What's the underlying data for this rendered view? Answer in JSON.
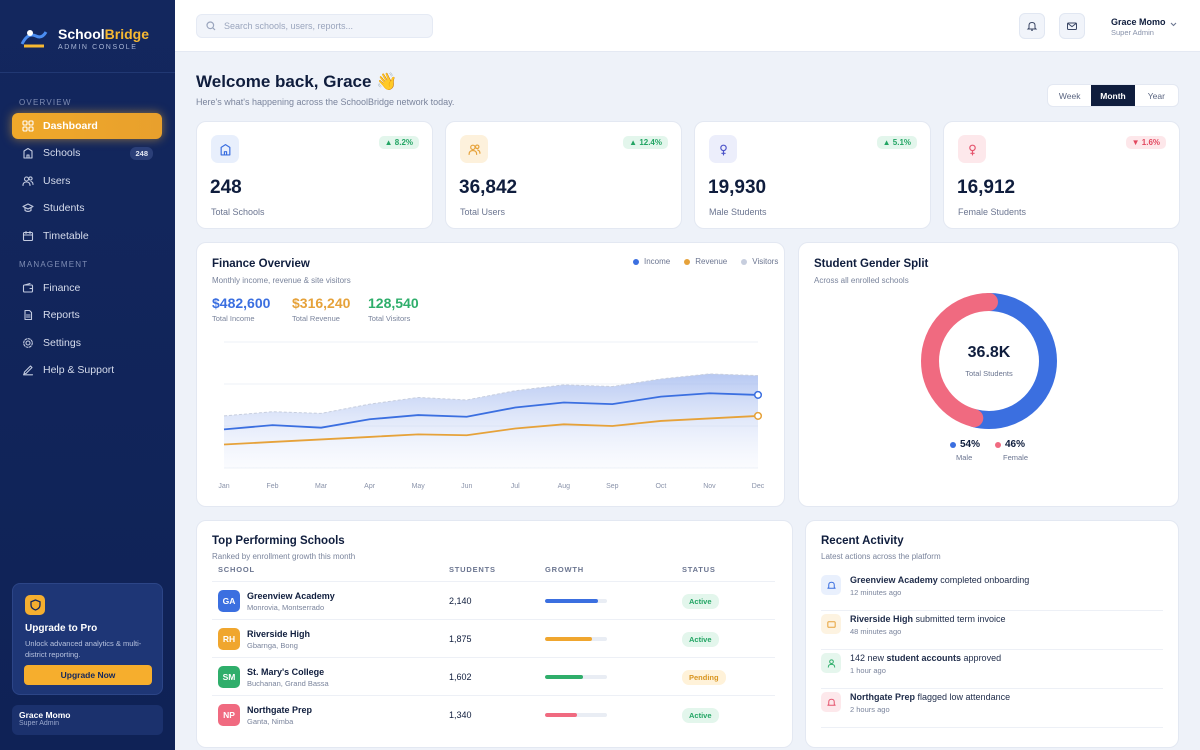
{
  "brand": {
    "name_a": "School",
    "name_b": "Bridge",
    "subtitle": "ADMIN CONSOLE"
  },
  "sidebar": {
    "overview_label": "OVERVIEW",
    "management_label": "MANAGEMENT",
    "items": [
      {
        "label": "Dashboard",
        "icon": "grid-icon"
      },
      {
        "label": "Schools",
        "icon": "building-icon",
        "badge": "248"
      },
      {
        "label": "Users",
        "icon": "users-icon"
      },
      {
        "label": "Students",
        "icon": "graduation-cap-icon"
      },
      {
        "label": "Timetable",
        "icon": "calendar-icon"
      },
      {
        "label": "Finance",
        "icon": "wallet-icon"
      },
      {
        "label": "Reports",
        "icon": "document-icon"
      },
      {
        "label": "Settings",
        "icon": "gear-icon"
      },
      {
        "label": "Help & Support",
        "icon": "edit-icon"
      }
    ],
    "upgrade": {
      "title": "Upgrade to Pro",
      "text": "Unlock advanced analytics & multi-district reporting.",
      "button": "Upgrade Now"
    },
    "user": {
      "name": "Grace Momo",
      "role": "Super Admin"
    }
  },
  "topbar": {
    "search_placeholder": "Search schools, users, reports...",
    "user_name": "Grace Momo",
    "user_role": "Super Admin"
  },
  "header": {
    "title": "Welcome back, Grace 👋",
    "subtitle": "Here's what's happening across the SchoolBridge network today.",
    "ranges": [
      "Week",
      "Month",
      "Year"
    ],
    "selected_range": "Month"
  },
  "stats": [
    {
      "value": "248",
      "label": "Total Schools",
      "trend": "▲ 8.2%",
      "dir": "up",
      "icon": "building-icon",
      "color": "#3b6fe0"
    },
    {
      "value": "36,842",
      "label": "Total Users",
      "trend": "▲ 12.4%",
      "dir": "up",
      "icon": "users-icon",
      "color": "#e6a23a"
    },
    {
      "value": "19,930",
      "label": "Male Students",
      "trend": "▲ 5.1%",
      "dir": "up",
      "icon": "male-icon",
      "color": "#4f56c9"
    },
    {
      "value": "16,912",
      "label": "Female Students",
      "trend": "▼ 1.6%",
      "dir": "down",
      "icon": "female-icon",
      "color": "#e5566f"
    }
  ],
  "finance": {
    "title": "Finance Overview",
    "subtitle": "Monthly income, revenue & site visitors",
    "kpis": [
      {
        "value": "$482,600",
        "label": "Total Income",
        "color": "#3b6fe0"
      },
      {
        "value": "$316,240",
        "label": "Total Revenue",
        "color": "#e6a23a"
      },
      {
        "value": "128,540",
        "label": "Total Visitors",
        "color": "#2fae6b"
      }
    ],
    "chart_data": {
      "type": "line",
      "categories": [
        "Jan",
        "Feb",
        "Mar",
        "Apr",
        "May",
        "Jun",
        "Jul",
        "Aug",
        "Sep",
        "Oct",
        "Nov",
        "Dec"
      ],
      "series": [
        {
          "name": "Income",
          "color": "#3b6fe0",
          "values": [
            46,
            51,
            48,
            58,
            63,
            61,
            72,
            78,
            76,
            85,
            89,
            87
          ]
        },
        {
          "name": "Revenue",
          "color": "#e6a23a",
          "values": [
            28,
            31,
            34,
            37,
            40,
            39,
            47,
            52,
            50,
            56,
            59,
            62
          ]
        },
        {
          "name": "Visitors",
          "color": "#c7cede",
          "values": [
            62,
            67,
            65,
            76,
            84,
            81,
            92,
            99,
            97,
            106,
            112,
            110
          ]
        }
      ],
      "ylim": [
        0,
        150
      ],
      "grid": true,
      "legend": "top-right"
    }
  },
  "gender": {
    "title": "Student Gender Split",
    "subtitle": "Across all enrolled schools",
    "center_value": "36.8K",
    "center_label": "Total Students",
    "chart_data": {
      "type": "pie",
      "series": [
        {
          "name": "Male",
          "value": 54,
          "label": "54%",
          "color": "#3b6fe0"
        },
        {
          "name": "Female",
          "value": 46,
          "label": "46%",
          "color": "#f06a80"
        }
      ]
    }
  },
  "schools": {
    "title": "Top Performing Schools",
    "subtitle": "Ranked by enrollment growth this month",
    "columns": [
      "SCHOOL",
      "STUDENTS",
      "GROWTH",
      "STATUS"
    ],
    "rows": [
      {
        "initials": "GA",
        "name": "Greenview Academy",
        "location": "Monrovia, Montserrado",
        "students": "2,140",
        "growth": 0.85,
        "status": "Active",
        "color": "#3b6fe0",
        "bar": "#3b6fe0"
      },
      {
        "initials": "RH",
        "name": "Riverside High",
        "location": "Gbarnga, Bong",
        "students": "1,875",
        "growth": 0.75,
        "status": "Active",
        "color": "#f0a62e",
        "bar": "#f0a62e"
      },
      {
        "initials": "SM",
        "name": "St. Mary's College",
        "location": "Buchanan, Grand Bassa",
        "students": "1,602",
        "growth": 0.62,
        "status": "Pending",
        "color": "#2fae6b",
        "bar": "#2fae6b"
      },
      {
        "initials": "NP",
        "name": "Northgate Prep",
        "location": "Ganta, Nimba",
        "students": "1,340",
        "growth": 0.52,
        "status": "Active",
        "color": "#f06a80",
        "bar": "#f06a80"
      }
    ]
  },
  "activity": {
    "title": "Recent Activity",
    "subtitle": "Latest actions across the platform",
    "items": [
      {
        "bold": "Greenview Academy",
        "text": " completed onboarding",
        "time": "12 minutes ago",
        "icon": "bell-icon",
        "color": "#3b6fe0",
        "bg": "#e9f0fd"
      },
      {
        "bold": "Riverside High",
        "text": " submitted term invoice",
        "time": "48 minutes ago",
        "icon": "invoice-icon",
        "color": "#e6a23a",
        "bg": "#fdf3e1"
      },
      {
        "pre": "142 new ",
        "bold": "student accounts",
        "text": " approved",
        "time": "1 hour ago",
        "icon": "user-check-icon",
        "color": "#2fae6b",
        "bg": "#e5f6ed"
      },
      {
        "bold": "Northgate Prep",
        "text": " flagged low attendance",
        "time": "2 hours ago",
        "icon": "alert-icon",
        "color": "#e5566f",
        "bg": "#fde8eb"
      }
    ]
  }
}
